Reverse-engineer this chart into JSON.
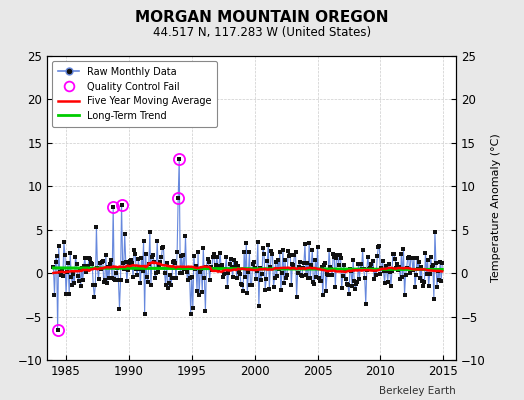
{
  "title": "MORGAN MOUNTAIN OREGON",
  "subtitle": "44.517 N, 117.283 W (United States)",
  "credit": "Berkeley Earth",
  "ylabel": "Temperature Anomaly (°C)",
  "xlim": [
    1983.5,
    2016.0
  ],
  "ylim": [
    -10,
    25
  ],
  "yticks_left": [
    -10,
    -5,
    0,
    5,
    10,
    15,
    20,
    25
  ],
  "yticks_right": [
    -10,
    -5,
    0,
    5,
    10,
    15,
    20,
    25
  ],
  "xticks": [
    1985,
    1990,
    1995,
    2000,
    2005,
    2010,
    2015
  ],
  "background_color": "#e8e8e8",
  "plot_bg_color": "#ffffff",
  "raw_line_color": "#6688dd",
  "raw_marker_color": "#111111",
  "moving_avg_color": "#ff0000",
  "trend_color": "#00cc00",
  "qc_color": "#ff00ff",
  "seed": 17,
  "n_months": 372
}
